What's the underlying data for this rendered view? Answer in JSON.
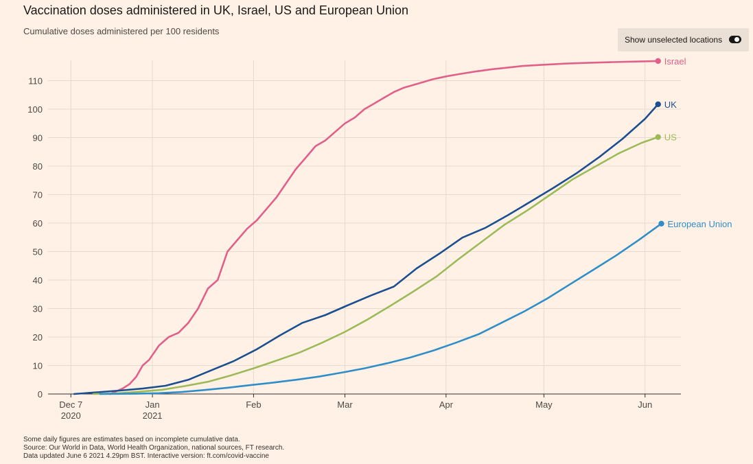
{
  "title": "Vaccination doses administered in UK, Israel, US and European Union",
  "subtitle": "Cumulative doses administered per 100 residents",
  "toggle": {
    "label": "Show unselected locations",
    "state": "on"
  },
  "footnotes": [
    "Some daily figures are estimates based on incomplete cumulative data.",
    "Source: Our World in Data, World Health Organization, national sources, FT research.",
    "Data updated June 6 2021 4.29pm BST. Interactive version: ft.com/covid-vaccine"
  ],
  "colors": {
    "background": "#fff1e5",
    "grid": "#e6d9ce",
    "axis": "#33302e",
    "israel": "#e0608a",
    "uk": "#1b4f8f",
    "us": "#9cbb58",
    "eu": "#2f8ec8"
  },
  "chart_data": {
    "type": "line",
    "title": "Vaccination doses administered in UK, Israel, US and European Union",
    "subtitle": "Cumulative doses administered per 100 residents",
    "xlabel": "",
    "ylabel": "",
    "xlim": [
      "2020-11-30",
      "2021-06-12"
    ],
    "ylim": [
      0,
      118
    ],
    "yticks": [
      0,
      10,
      20,
      30,
      40,
      50,
      60,
      70,
      80,
      90,
      100,
      110
    ],
    "xticks": [
      {
        "date": "2020-12-07",
        "label": "Dec 7",
        "sublabel": "2020"
      },
      {
        "date": "2021-01-01",
        "label": "Jan",
        "sublabel": "2021"
      },
      {
        "date": "2021-02-01",
        "label": "Feb",
        "sublabel": ""
      },
      {
        "date": "2021-03-01",
        "label": "Mar",
        "sublabel": ""
      },
      {
        "date": "2021-04-01",
        "label": "Apr",
        "sublabel": ""
      },
      {
        "date": "2021-05-01",
        "label": "May",
        "sublabel": ""
      },
      {
        "date": "2021-06-01",
        "label": "Jun",
        "sublabel": ""
      }
    ],
    "grid": "vertical and horizontal",
    "legend": "direct labels at line ends",
    "series": [
      {
        "name": "Israel",
        "color": "#e0608a",
        "x": [
          "2020-12-19",
          "2020-12-21",
          "2020-12-23",
          "2020-12-25",
          "2020-12-27",
          "2020-12-29",
          "2020-12-31",
          "2021-01-03",
          "2021-01-06",
          "2021-01-09",
          "2021-01-12",
          "2021-01-15",
          "2021-01-18",
          "2021-01-21",
          "2021-01-24",
          "2021-01-27",
          "2021-01-30",
          "2021-02-02",
          "2021-02-05",
          "2021-02-08",
          "2021-02-11",
          "2021-02-14",
          "2021-02-17",
          "2021-02-20",
          "2021-02-23",
          "2021-02-26",
          "2021-03-01",
          "2021-03-04",
          "2021-03-07",
          "2021-03-10",
          "2021-03-13",
          "2021-03-16",
          "2021-03-19",
          "2021-03-22",
          "2021-03-25",
          "2021-03-28",
          "2021-04-01",
          "2021-04-05",
          "2021-04-10",
          "2021-04-15",
          "2021-04-20",
          "2021-04-25",
          "2021-05-01",
          "2021-05-08",
          "2021-05-15",
          "2021-05-22",
          "2021-05-29",
          "2021-06-05"
        ],
        "y": [
          0,
          1,
          2,
          3.5,
          6,
          10,
          12,
          17,
          20,
          21.5,
          25,
          30,
          37,
          40,
          50,
          54,
          58,
          61,
          65,
          69,
          74,
          79,
          83,
          87,
          89,
          92,
          95,
          97,
          100,
          102,
          104,
          106,
          107.5,
          108.5,
          109.5,
          110.5,
          111.5,
          112.3,
          113.2,
          114,
          114.6,
          115.2,
          115.6,
          116,
          116.3,
          116.5,
          116.7,
          116.9
        ]
      },
      {
        "name": "UK",
        "color": "#1b4f8f",
        "x": [
          "2020-12-08",
          "2020-12-15",
          "2020-12-22",
          "2020-12-29",
          "2021-01-05",
          "2021-01-12",
          "2021-01-19",
          "2021-01-26",
          "2021-02-02",
          "2021-02-09",
          "2021-02-16",
          "2021-02-23",
          "2021-03-02",
          "2021-03-09",
          "2021-03-16",
          "2021-03-23",
          "2021-03-30",
          "2021-04-06",
          "2021-04-13",
          "2021-04-20",
          "2021-04-27",
          "2021-05-04",
          "2021-05-11",
          "2021-05-18",
          "2021-05-25",
          "2021-06-01",
          "2021-06-05"
        ],
        "y": [
          0,
          0.6,
          1.2,
          1.9,
          2.9,
          5,
          8.3,
          11.6,
          15.7,
          20.5,
          25,
          27.7,
          31.2,
          34.6,
          37.7,
          44.1,
          49.3,
          54.9,
          58.3,
          62.8,
          67.6,
          72.4,
          77.5,
          83.2,
          89.5,
          96.6,
          101.7
        ]
      },
      {
        "name": "US",
        "color": "#9cbb58",
        "x": [
          "2020-12-14",
          "2020-12-21",
          "2020-12-28",
          "2021-01-04",
          "2021-01-11",
          "2021-01-18",
          "2021-01-25",
          "2021-02-01",
          "2021-02-08",
          "2021-02-15",
          "2021-02-22",
          "2021-03-01",
          "2021-03-08",
          "2021-03-15",
          "2021-03-22",
          "2021-03-29",
          "2021-04-05",
          "2021-04-12",
          "2021-04-19",
          "2021-04-26",
          "2021-05-03",
          "2021-05-10",
          "2021-05-17",
          "2021-05-24",
          "2021-05-31",
          "2021-06-05"
        ],
        "y": [
          0,
          0.2,
          0.8,
          1.5,
          2.8,
          4.3,
          6.5,
          9,
          11.7,
          14.5,
          18,
          21.8,
          26.2,
          31,
          36,
          41.2,
          47.5,
          53.5,
          59.5,
          64.5,
          70,
          75.5,
          80,
          84.5,
          88.2,
          90.2
        ]
      },
      {
        "name": "European Union",
        "color": "#2f8ec8",
        "x": [
          "2020-12-16",
          "2020-12-27",
          "2021-01-03",
          "2021-01-10",
          "2021-01-17",
          "2021-01-24",
          "2021-01-31",
          "2021-02-07",
          "2021-02-14",
          "2021-02-21",
          "2021-02-28",
          "2021-03-07",
          "2021-03-14",
          "2021-03-21",
          "2021-03-28",
          "2021-04-04",
          "2021-04-11",
          "2021-04-18",
          "2021-04-25",
          "2021-05-02",
          "2021-05-09",
          "2021-05-16",
          "2021-05-23",
          "2021-05-30",
          "2021-06-06"
        ],
        "y": [
          0,
          0.1,
          0.3,
          0.7,
          1.4,
          2.2,
          3.1,
          4,
          5,
          6.1,
          7.5,
          9,
          10.8,
          12.8,
          15.2,
          18,
          21,
          25,
          29,
          33.5,
          38.5,
          43.5,
          48.5,
          54,
          59.8
        ]
      }
    ]
  }
}
